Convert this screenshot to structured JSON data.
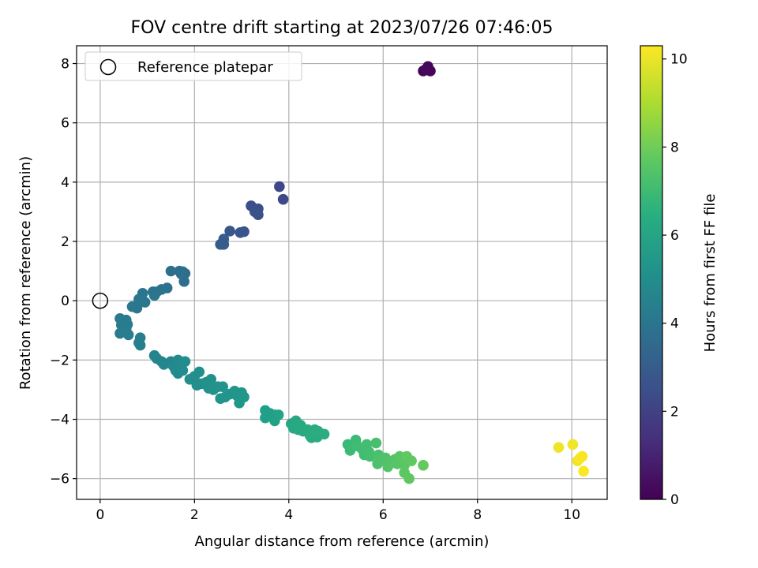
{
  "chart_data": {
    "type": "scatter",
    "title": "FOV centre drift starting at 2023/07/26 07:46:05",
    "xlabel": "Angular distance from reference (arcmin)",
    "ylabel": "Rotation from reference (arcmin)",
    "xlim": [
      -0.5,
      10.75
    ],
    "ylim": [
      -6.7,
      8.6
    ],
    "xticks": [
      0,
      2,
      4,
      6,
      8,
      10
    ],
    "yticks": [
      -6,
      -4,
      -2,
      0,
      2,
      4,
      6,
      8
    ],
    "grid": true,
    "legend": {
      "position": "top-left",
      "entries": [
        "Reference platepar"
      ]
    },
    "reference_point": {
      "x": 0,
      "y": 0,
      "label": "Reference platepar"
    },
    "colorbar": {
      "label": "Hours from first FF file",
      "range": [
        0,
        10.3
      ],
      "ticks": [
        0,
        2,
        4,
        6,
        8,
        10
      ],
      "colormap": "viridis"
    },
    "points": [
      {
        "x": 6.85,
        "y": 7.75,
        "c": 0.05
      },
      {
        "x": 6.95,
        "y": 7.9,
        "c": 0.1
      },
      {
        "x": 7.0,
        "y": 7.75,
        "c": 0.15
      },
      {
        "x": 6.9,
        "y": 7.8,
        "c": 0.2
      },
      {
        "x": 3.8,
        "y": 3.85,
        "c": 2.25
      },
      {
        "x": 3.88,
        "y": 3.42,
        "c": 2.3
      },
      {
        "x": 3.2,
        "y": 3.2,
        "c": 2.5
      },
      {
        "x": 3.35,
        "y": 3.1,
        "c": 2.55
      },
      {
        "x": 3.35,
        "y": 2.9,
        "c": 2.6
      },
      {
        "x": 3.28,
        "y": 3.0,
        "c": 2.58
      },
      {
        "x": 3.05,
        "y": 2.33,
        "c": 2.75
      },
      {
        "x": 2.97,
        "y": 2.3,
        "c": 2.78
      },
      {
        "x": 2.75,
        "y": 2.35,
        "c": 2.85
      },
      {
        "x": 2.62,
        "y": 2.08,
        "c": 2.95
      },
      {
        "x": 2.55,
        "y": 1.9,
        "c": 3.0
      },
      {
        "x": 2.62,
        "y": 1.9,
        "c": 3.02
      },
      {
        "x": 1.5,
        "y": 1.0,
        "c": 3.75
      },
      {
        "x": 1.68,
        "y": 1.0,
        "c": 3.7
      },
      {
        "x": 1.75,
        "y": 0.98,
        "c": 3.68
      },
      {
        "x": 1.8,
        "y": 0.92,
        "c": 3.65
      },
      {
        "x": 1.72,
        "y": 0.9,
        "c": 3.72
      },
      {
        "x": 1.78,
        "y": 0.65,
        "c": 3.76
      },
      {
        "x": 1.42,
        "y": 0.43,
        "c": 3.85
      },
      {
        "x": 1.3,
        "y": 0.38,
        "c": 3.9
      },
      {
        "x": 1.12,
        "y": 0.3,
        "c": 3.95
      },
      {
        "x": 1.2,
        "y": 0.3,
        "c": 3.98
      },
      {
        "x": 1.15,
        "y": 0.18,
        "c": 4.0
      },
      {
        "x": 0.9,
        "y": 0.25,
        "c": 4.02
      },
      {
        "x": 0.95,
        "y": -0.05,
        "c": 4.05
      },
      {
        "x": 0.82,
        "y": 0.05,
        "c": 4.08
      },
      {
        "x": 0.78,
        "y": -0.25,
        "c": 4.1
      },
      {
        "x": 0.68,
        "y": -0.2,
        "c": 4.12
      },
      {
        "x": 0.42,
        "y": -0.6,
        "c": 4.2
      },
      {
        "x": 0.55,
        "y": -0.65,
        "c": 4.22
      },
      {
        "x": 0.58,
        "y": -0.8,
        "c": 4.25
      },
      {
        "x": 0.45,
        "y": -0.82,
        "c": 4.28
      },
      {
        "x": 0.55,
        "y": -0.95,
        "c": 4.3
      },
      {
        "x": 0.42,
        "y": -1.1,
        "c": 4.32
      },
      {
        "x": 0.5,
        "y": -1.05,
        "c": 4.34
      },
      {
        "x": 0.6,
        "y": -1.15,
        "c": 4.36
      },
      {
        "x": 0.85,
        "y": -1.25,
        "c": 4.4
      },
      {
        "x": 0.85,
        "y": -1.5,
        "c": 4.45
      },
      {
        "x": 0.82,
        "y": -1.42,
        "c": 4.43
      },
      {
        "x": 1.15,
        "y": -1.85,
        "c": 4.6
      },
      {
        "x": 1.2,
        "y": -1.95,
        "c": 4.65
      },
      {
        "x": 1.3,
        "y": -2.05,
        "c": 4.7
      },
      {
        "x": 1.35,
        "y": -2.15,
        "c": 4.75
      },
      {
        "x": 1.5,
        "y": -2.05,
        "c": 4.8
      },
      {
        "x": 1.55,
        "y": -2.2,
        "c": 4.85
      },
      {
        "x": 1.6,
        "y": -2.35,
        "c": 4.9
      },
      {
        "x": 1.65,
        "y": -2.45,
        "c": 4.92
      },
      {
        "x": 1.65,
        "y": -2.0,
        "c": 4.95
      },
      {
        "x": 1.75,
        "y": -2.1,
        "c": 4.97
      },
      {
        "x": 1.8,
        "y": -2.05,
        "c": 5.0
      },
      {
        "x": 1.75,
        "y": -2.35,
        "c": 5.0
      },
      {
        "x": 1.9,
        "y": -2.65,
        "c": 5.05
      },
      {
        "x": 2.0,
        "y": -2.55,
        "c": 5.08
      },
      {
        "x": 2.05,
        "y": -2.85,
        "c": 5.1
      },
      {
        "x": 2.1,
        "y": -2.4,
        "c": 5.1
      },
      {
        "x": 2.15,
        "y": -2.8,
        "c": 5.12
      },
      {
        "x": 2.25,
        "y": -2.75,
        "c": 5.15
      },
      {
        "x": 2.3,
        "y": -2.95,
        "c": 5.18
      },
      {
        "x": 2.35,
        "y": -2.65,
        "c": 5.2
      },
      {
        "x": 2.4,
        "y": -3.0,
        "c": 5.22
      },
      {
        "x": 2.5,
        "y": -2.9,
        "c": 5.25
      },
      {
        "x": 2.55,
        "y": -3.3,
        "c": 5.3
      },
      {
        "x": 2.6,
        "y": -2.9,
        "c": 5.3
      },
      {
        "x": 2.65,
        "y": -3.25,
        "c": 5.32
      },
      {
        "x": 2.75,
        "y": -3.15,
        "c": 5.35
      },
      {
        "x": 2.9,
        "y": -3.2,
        "c": 5.38
      },
      {
        "x": 2.95,
        "y": -3.45,
        "c": 5.4
      },
      {
        "x": 3.0,
        "y": -3.1,
        "c": 5.42
      },
      {
        "x": 3.05,
        "y": -3.25,
        "c": 5.45
      },
      {
        "x": 2.85,
        "y": -3.05,
        "c": 5.36
      },
      {
        "x": 3.5,
        "y": -3.7,
        "c": 5.75
      },
      {
        "x": 3.5,
        "y": -3.95,
        "c": 5.8
      },
      {
        "x": 3.6,
        "y": -3.8,
        "c": 5.82
      },
      {
        "x": 3.7,
        "y": -3.85,
        "c": 5.85
      },
      {
        "x": 3.7,
        "y": -4.05,
        "c": 5.88
      },
      {
        "x": 3.78,
        "y": -3.85,
        "c": 5.9
      },
      {
        "x": 4.05,
        "y": -4.15,
        "c": 6.1
      },
      {
        "x": 4.15,
        "y": -4.05,
        "c": 6.12
      },
      {
        "x": 4.1,
        "y": -4.3,
        "c": 6.15
      },
      {
        "x": 4.2,
        "y": -4.35,
        "c": 6.18
      },
      {
        "x": 4.3,
        "y": -4.4,
        "c": 6.2
      },
      {
        "x": 4.25,
        "y": -4.2,
        "c": 6.22
      },
      {
        "x": 4.4,
        "y": -4.35,
        "c": 6.25
      },
      {
        "x": 4.45,
        "y": -4.55,
        "c": 6.28
      },
      {
        "x": 4.5,
        "y": -4.45,
        "c": 6.3
      },
      {
        "x": 4.55,
        "y": -4.35,
        "c": 6.32
      },
      {
        "x": 4.6,
        "y": -4.6,
        "c": 6.35
      },
      {
        "x": 4.62,
        "y": -4.4,
        "c": 6.38
      },
      {
        "x": 4.75,
        "y": -4.5,
        "c": 6.4
      },
      {
        "x": 4.48,
        "y": -4.62,
        "c": 6.3
      },
      {
        "x": 5.25,
        "y": -4.85,
        "c": 6.95
      },
      {
        "x": 5.3,
        "y": -5.05,
        "c": 7.0
      },
      {
        "x": 5.42,
        "y": -4.7,
        "c": 7.02
      },
      {
        "x": 5.45,
        "y": -4.9,
        "c": 7.05
      },
      {
        "x": 5.55,
        "y": -5.0,
        "c": 7.1
      },
      {
        "x": 5.6,
        "y": -5.2,
        "c": 7.12
      },
      {
        "x": 5.65,
        "y": -4.85,
        "c": 7.15
      },
      {
        "x": 5.7,
        "y": -5.1,
        "c": 7.18
      },
      {
        "x": 5.72,
        "y": -5.25,
        "c": 7.2
      },
      {
        "x": 5.85,
        "y": -4.8,
        "c": 7.25
      },
      {
        "x": 5.9,
        "y": -5.2,
        "c": 7.28
      },
      {
        "x": 5.95,
        "y": -5.35,
        "c": 7.3
      },
      {
        "x": 5.88,
        "y": -5.5,
        "c": 7.32
      },
      {
        "x": 6.05,
        "y": -5.3,
        "c": 7.4
      },
      {
        "x": 6.1,
        "y": -5.6,
        "c": 7.45
      },
      {
        "x": 6.2,
        "y": -5.45,
        "c": 7.5
      },
      {
        "x": 6.25,
        "y": -5.35,
        "c": 7.52
      },
      {
        "x": 6.3,
        "y": -5.5,
        "c": 7.55
      },
      {
        "x": 6.35,
        "y": -5.25,
        "c": 7.58
      },
      {
        "x": 6.45,
        "y": -5.55,
        "c": 7.6
      },
      {
        "x": 6.5,
        "y": -5.35,
        "c": 7.62
      },
      {
        "x": 6.45,
        "y": -5.8,
        "c": 7.65
      },
      {
        "x": 6.55,
        "y": -6.0,
        "c": 7.68
      },
      {
        "x": 6.6,
        "y": -5.4,
        "c": 7.7
      },
      {
        "x": 6.5,
        "y": -5.25,
        "c": 7.72
      },
      {
        "x": 6.85,
        "y": -5.55,
        "c": 7.8
      },
      {
        "x": 9.72,
        "y": -4.95,
        "c": 10.05
      },
      {
        "x": 10.02,
        "y": -4.85,
        "c": 10.1
      },
      {
        "x": 10.12,
        "y": -5.4,
        "c": 10.15
      },
      {
        "x": 10.18,
        "y": -5.3,
        "c": 10.2
      },
      {
        "x": 10.22,
        "y": -5.25,
        "c": 10.22
      },
      {
        "x": 10.25,
        "y": -5.75,
        "c": 10.25
      }
    ]
  }
}
